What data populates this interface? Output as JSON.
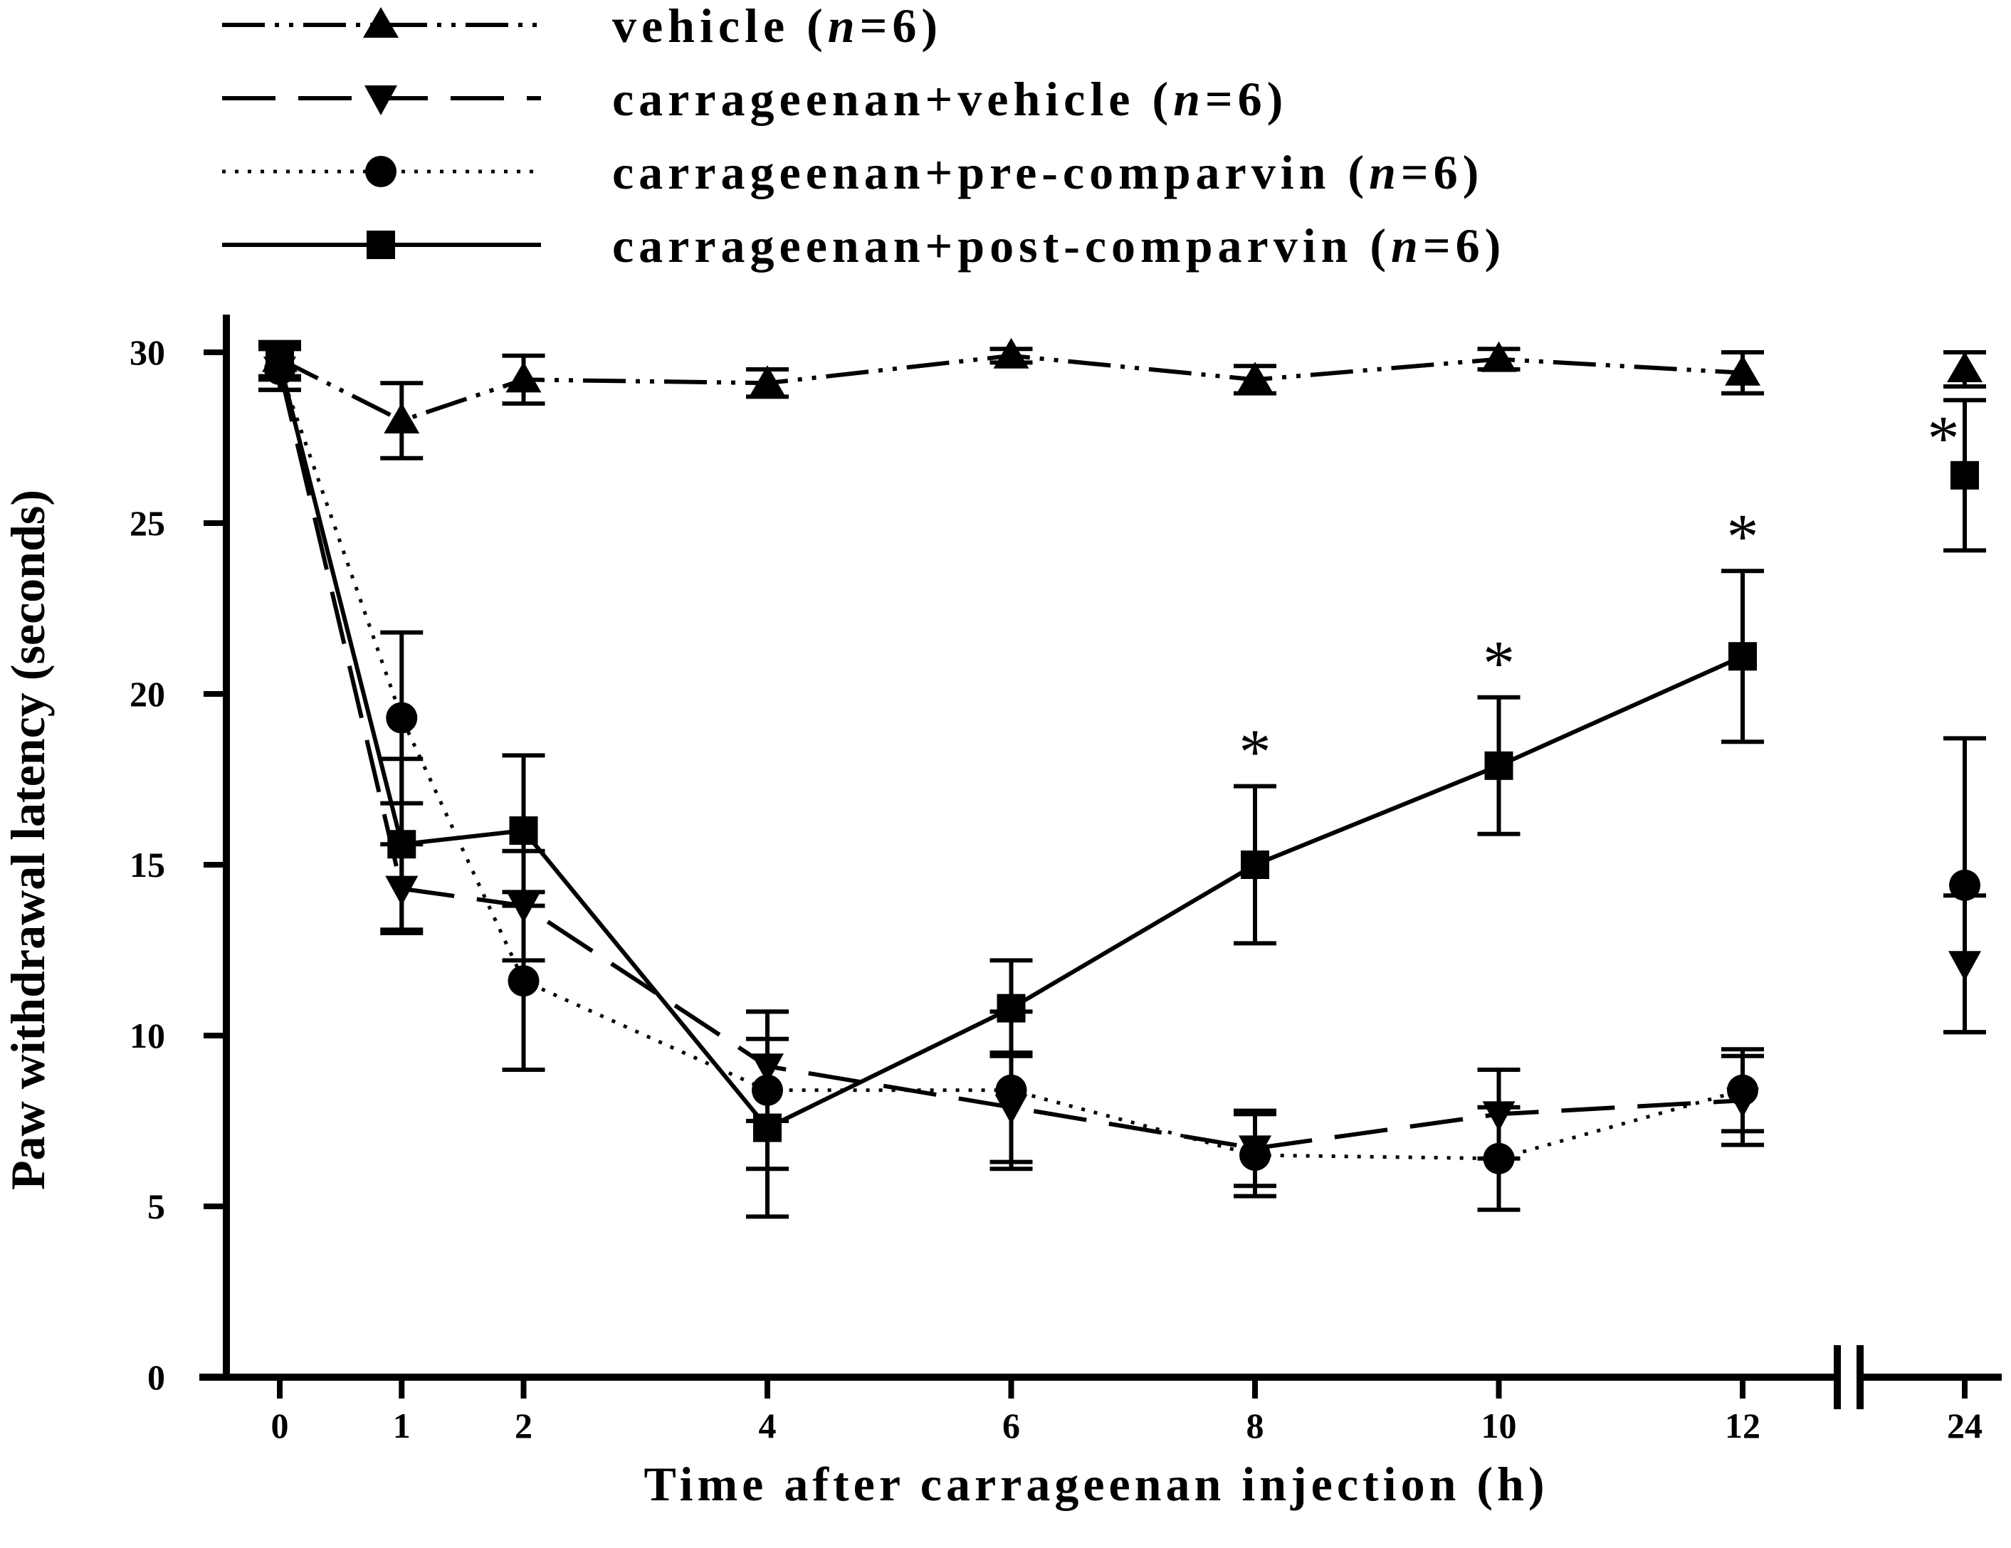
{
  "chart_data": {
    "type": "line",
    "xlabel": "Time after carrageenan injection (h)",
    "ylabel": "Paw withdrawal latency (seconds)",
    "ylim": [
      0,
      30
    ],
    "y_ticks": [
      "0",
      "5",
      "10",
      "15",
      "20",
      "25",
      "30"
    ],
    "x_axis_break": "between 12 and 24",
    "categories": [
      "0",
      "1",
      "2",
      "4",
      "6",
      "8",
      "10",
      "12",
      "24"
    ],
    "grid": false,
    "legend_position": "top",
    "series": [
      {
        "name": "vehicle",
        "n": "6",
        "line_style": "dash-dot-dot",
        "marker": "triangle-up",
        "values": [
          29.8,
          28.0,
          29.2,
          29.1,
          29.9,
          29.2,
          29.8,
          29.4,
          29.5
        ],
        "errors": [
          0.5,
          1.1,
          0.7,
          0.4,
          0.2,
          0.4,
          0.3,
          0.6,
          0.5
        ]
      },
      {
        "name": "carrageenan+vehicle",
        "n": "6",
        "line_style": "dashed",
        "marker": "triangle-down",
        "values": [
          29.5,
          14.3,
          13.8,
          9.1,
          7.9,
          6.7,
          7.7,
          8.1,
          12.1
        ],
        "errors": [
          0.6,
          1.3,
          1.6,
          1.6,
          1.6,
          1.1,
          1.3,
          1.3,
          2.0
        ]
      },
      {
        "name": "carrageenan+pre-comparvin",
        "n": "6",
        "line_style": "dotted",
        "marker": "circle",
        "values": [
          29.5,
          19.3,
          11.6,
          8.4,
          8.4,
          6.5,
          6.4,
          8.4,
          14.4
        ],
        "errors": [
          0.6,
          2.5,
          2.6,
          2.3,
          2.3,
          1.2,
          1.5,
          1.2,
          4.3
        ]
      },
      {
        "name": "carrageenan+post-comparvin",
        "n": "6",
        "line_style": "solid",
        "marker": "square",
        "values": [
          29.7,
          15.6,
          16.0,
          7.3,
          10.8,
          15.0,
          17.9,
          21.1,
          26.4
        ],
        "errors": [
          0.5,
          2.5,
          2.2,
          2.6,
          1.4,
          2.3,
          2.0,
          2.5,
          2.2
        ],
        "significant": [
          false,
          false,
          false,
          false,
          false,
          true,
          true,
          true,
          true
        ]
      }
    ]
  },
  "legend_n_prefix": "n",
  "significance_symbol": "*"
}
